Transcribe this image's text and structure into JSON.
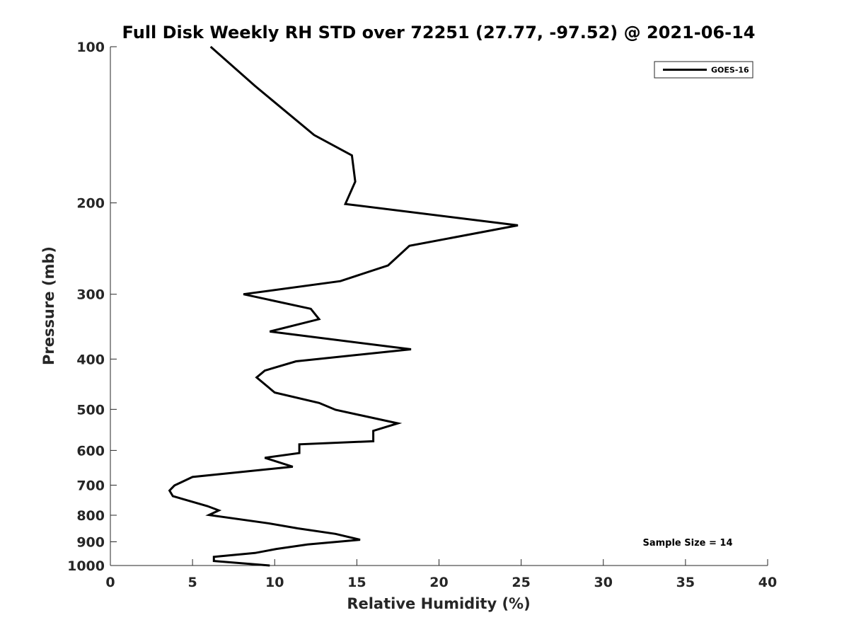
{
  "chart_data": {
    "type": "line",
    "title": "Full Disk Weekly RH STD over 72251 (27.77, -97.52) @ 2021-06-14",
    "xlabel": "Relative Humidity (%)",
    "ylabel": "Pressure (mb)",
    "xlim": [
      0,
      40
    ],
    "ylim": [
      100,
      1000
    ],
    "y_scale": "log",
    "y_reversed": true,
    "x_ticks": [
      "0",
      "5",
      "10",
      "15",
      "20",
      "25",
      "30",
      "35",
      "40"
    ],
    "y_ticks": [
      "100",
      "200",
      "300",
      "400",
      "500",
      "600",
      "700",
      "800",
      "900",
      "1000"
    ],
    "grid": false,
    "legend_position": "top-right",
    "annotation": "Sample Size = 14",
    "series": [
      {
        "name": "GOES-16",
        "color": "#000000",
        "x": [
          6.1,
          8.8,
          12.4,
          14.7,
          14.9,
          14.3,
          24.8,
          18.2,
          16.9,
          14.0,
          8.1,
          12.2,
          12.7,
          9.7,
          18.3,
          11.3,
          9.4,
          8.9,
          10.0,
          12.7,
          13.7,
          17.5,
          16.0,
          16.0,
          11.5,
          11.5,
          9.4,
          11.1,
          5.0,
          3.9,
          3.6,
          3.8,
          5.9,
          6.6,
          6.0,
          9.6,
          11.4,
          13.7,
          15.2,
          12.0,
          10.1,
          8.8,
          6.3,
          6.3,
          9.7
        ],
        "y": [
          100,
          119,
          148,
          162,
          182,
          201,
          221,
          242,
          264,
          283,
          300,
          320,
          335,
          354,
          383,
          404,
          421,
          434,
          464,
          486,
          501,
          532,
          550,
          576,
          584,
          607,
          620,
          645,
          675,
          701,
          717,
          735,
          768,
          783,
          799,
          829,
          848,
          869,
          892,
          911,
          929,
          946,
          962,
          980,
          1000
        ]
      }
    ]
  }
}
